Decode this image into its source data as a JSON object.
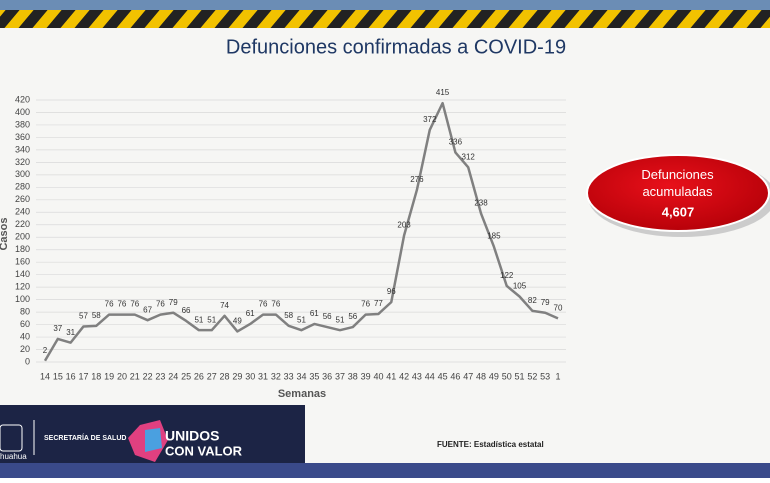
{
  "chart_data": {
    "type": "line",
    "title": "Defunciones confirmadas a COVID-19",
    "x_label": "Semanas",
    "y_label": "Casos",
    "categories": [
      "14",
      "15",
      "16",
      "17",
      "18",
      "19",
      "20",
      "21",
      "22",
      "23",
      "24",
      "25",
      "26",
      "27",
      "28",
      "29",
      "30",
      "31",
      "32",
      "33",
      "34",
      "35",
      "36",
      "37",
      "38",
      "39",
      "40",
      "41",
      "42",
      "43",
      "44",
      "45",
      "46",
      "47",
      "48",
      "49",
      "50",
      "51",
      "52",
      "53",
      "1"
    ],
    "values": [
      2,
      37,
      31,
      57,
      58,
      76,
      76,
      76,
      67,
      76,
      79,
      66,
      51,
      51,
      74,
      49,
      61,
      76,
      76,
      58,
      51,
      61,
      56,
      51,
      56,
      76,
      77,
      96,
      203,
      276,
      372,
      415,
      336,
      312,
      238,
      185,
      122,
      105,
      82,
      79,
      70
    ],
    "color": "#808080",
    "ylim": [
      0,
      420
    ],
    "yticks": [
      0,
      20,
      40,
      60,
      80,
      100,
      120,
      140,
      160,
      180,
      200,
      220,
      240,
      260,
      280,
      300,
      320,
      340,
      360,
      380,
      400,
      420
    ],
    "grid": true
  },
  "badge": {
    "title": "Defunciones acumuladas",
    "value": "4,607"
  },
  "footer": {
    "source": "FUENTE: Estadística estatal",
    "agency": "SECRETARÍA DE SALUD",
    "brand_line1": "UNIDOS",
    "brand_line2": "CON VALOR",
    "state": "huahua"
  }
}
